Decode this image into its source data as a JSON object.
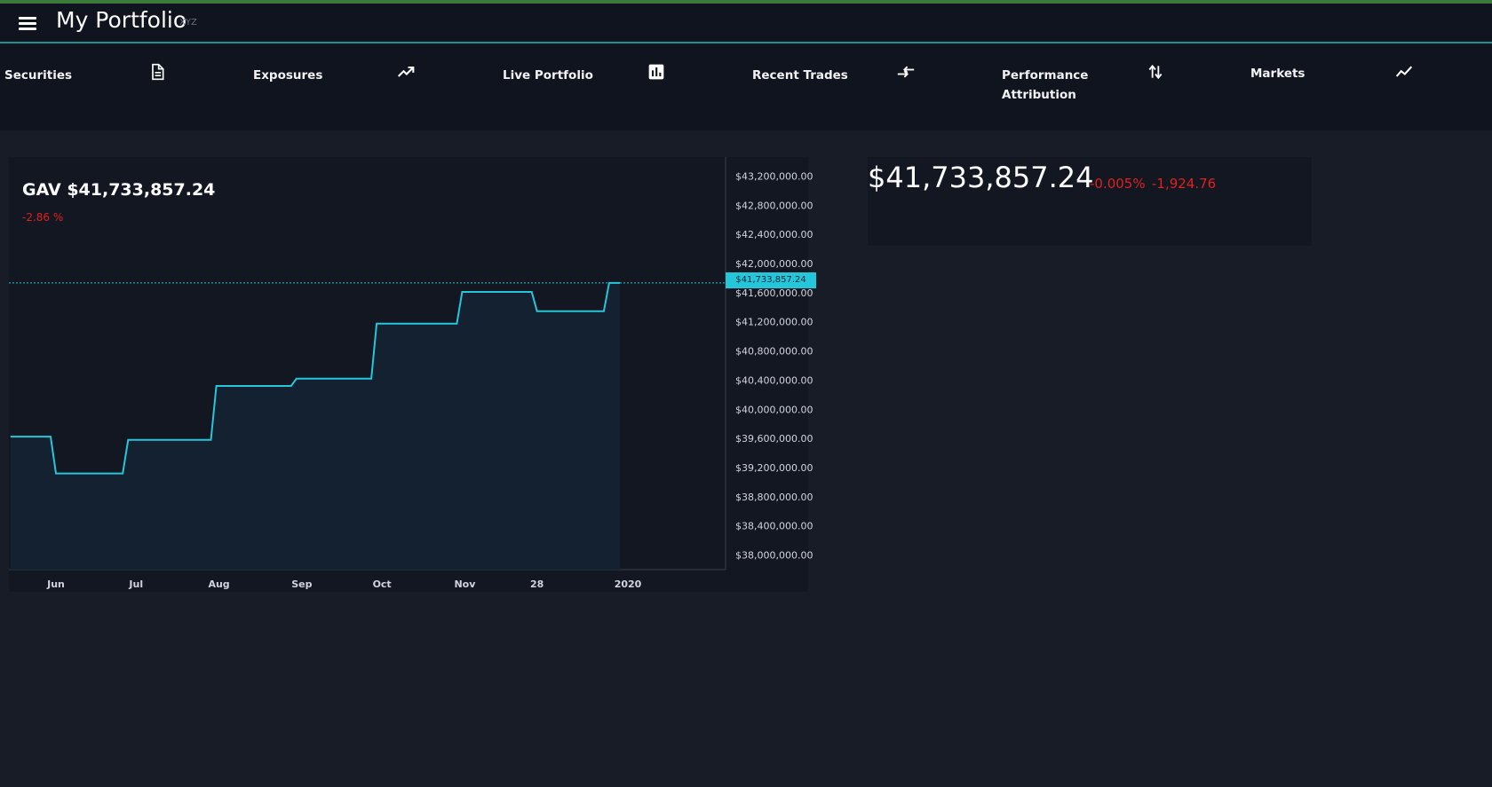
{
  "app": {
    "title": "My Portfolio",
    "subtitle": "XYZ"
  },
  "nav": [
    {
      "label": "Securities",
      "icon": "document-icon"
    },
    {
      "label": "Exposures",
      "icon": "trending-up-icon"
    },
    {
      "label": "Live Portfolio",
      "icon": "bar-chart-icon"
    },
    {
      "label": "Recent Trades",
      "icon": "compare-arrows-icon"
    },
    {
      "label": "Performance Attribution",
      "icon": "swap-vert-icon"
    },
    {
      "label": "Markets",
      "icon": "show-chart-icon"
    }
  ],
  "gav": {
    "label": "GAV $41,733,857.24",
    "change": "-2.86 %"
  },
  "summary": {
    "value": "$41,733,857.24",
    "pct_change": "-0.005%",
    "abs_change": "-1,924.76"
  },
  "colors": {
    "accent": "#26c6da",
    "negative": "#e0211d",
    "background": "#181c27",
    "panel": "#131722"
  },
  "chart_data": {
    "type": "line",
    "x_ticks": [
      "Jun",
      "Jul",
      "Aug",
      "Sep",
      "Oct",
      "Nov",
      "28",
      "2020"
    ],
    "y_ticks": [
      "$43,200,000.00",
      "$42,800,000.00",
      "$42,400,000.00",
      "$42,000,000.00",
      "$41,600,000.00",
      "$41,200,000.00",
      "$40,800,000.00",
      "$40,400,000.00",
      "$40,000,000.00",
      "$39,600,000.00",
      "$39,200,000.00",
      "$38,800,000.00",
      "$38,400,000.00",
      "$38,000,000.00"
    ],
    "ylim": [
      37800000,
      43400000
    ],
    "last_value_label": "$41,733,857.24",
    "last_value": 41733857.24,
    "grid": false,
    "step_points": [
      {
        "x": "2019-05-15",
        "y": 39625000
      },
      {
        "x": "2019-05-30",
        "y": 39625000
      },
      {
        "x": "2019-06-01",
        "y": 39120000
      },
      {
        "x": "2019-06-26",
        "y": 39120000
      },
      {
        "x": "2019-06-28",
        "y": 39580000
      },
      {
        "x": "2019-07-29",
        "y": 39580000
      },
      {
        "x": "2019-07-31",
        "y": 40320000
      },
      {
        "x": "2019-08-28",
        "y": 40320000
      },
      {
        "x": "2019-08-30",
        "y": 40420000
      },
      {
        "x": "2019-09-27",
        "y": 40420000
      },
      {
        "x": "2019-09-29",
        "y": 41175000
      },
      {
        "x": "2019-10-29",
        "y": 41175000
      },
      {
        "x": "2019-10-31",
        "y": 41610000
      },
      {
        "x": "2019-11-26",
        "y": 41610000
      },
      {
        "x": "2019-11-28",
        "y": 41345000
      },
      {
        "x": "2019-12-23",
        "y": 41345000
      },
      {
        "x": "2019-12-25",
        "y": 41733857.24
      },
      {
        "x": "2019-12-29",
        "y": 41733857.24
      }
    ]
  }
}
